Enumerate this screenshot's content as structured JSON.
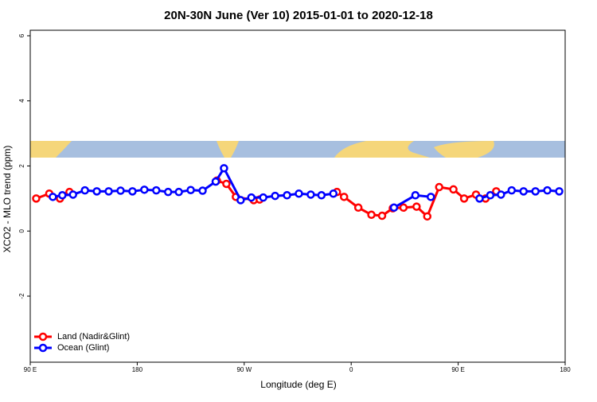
{
  "chart_data": {
    "type": "line",
    "title": "20N-30N June (Ver 10)   2015-01-01 to 2020-12-18",
    "x_label": "Longitude (deg E)",
    "y_label": "XCO2 - MLO trend (ppm)",
    "xlim": [
      90,
      540
    ],
    "xticks": [
      {
        "value": 90,
        "label": "90 E"
      },
      {
        "value": 180,
        "label": "180"
      },
      {
        "value": 270,
        "label": "90 W"
      },
      {
        "value": 360,
        "label": "0"
      },
      {
        "value": 450,
        "label": "90 E"
      },
      {
        "value": 540,
        "label": "180"
      }
    ],
    "ylim": [
      -4.03,
      6.17
    ],
    "yticks": [
      -2,
      0,
      2,
      4,
      6
    ],
    "legend": "bottom-left",
    "series": [
      {
        "name": "Land (Nadir&Glint)",
        "color": "#ff0000",
        "x": [
          95,
          106,
          115,
          123,
          247,
          255,
          263,
          278,
          283,
          348,
          354,
          366,
          377,
          386,
          395,
          404,
          415,
          424,
          434,
          446,
          455,
          465,
          473,
          482
        ],
        "values": [
          1.0,
          1.15,
          1.0,
          1.2,
          1.55,
          1.45,
          1.05,
          0.95,
          0.97,
          1.2,
          1.05,
          0.72,
          0.5,
          0.47,
          0.7,
          0.72,
          0.75,
          0.45,
          1.35,
          1.28,
          1.0,
          1.12,
          1.0,
          1.22
        ]
      },
      {
        "name": "Ocean (Glint)",
        "color": "#0000ff",
        "x": [
          109,
          117,
          126,
          136,
          146,
          156,
          166,
          176,
          186,
          196,
          206,
          215,
          225,
          235,
          246,
          253,
          267,
          276,
          286,
          296,
          306,
          316,
          326,
          335,
          345,
          396,
          414,
          427,
          468,
          477,
          486,
          495,
          505,
          515,
          525,
          535
        ],
        "values": [
          1.05,
          1.1,
          1.12,
          1.25,
          1.22,
          1.22,
          1.24,
          1.22,
          1.27,
          1.25,
          1.2,
          1.2,
          1.26,
          1.24,
          1.52,
          1.93,
          0.95,
          1.03,
          1.03,
          1.08,
          1.1,
          1.15,
          1.12,
          1.1,
          1.15,
          0.72,
          1.1,
          1.05,
          1.0,
          1.1,
          1.12,
          1.25,
          1.22,
          1.22,
          1.25,
          1.22
        ]
      }
    ]
  }
}
